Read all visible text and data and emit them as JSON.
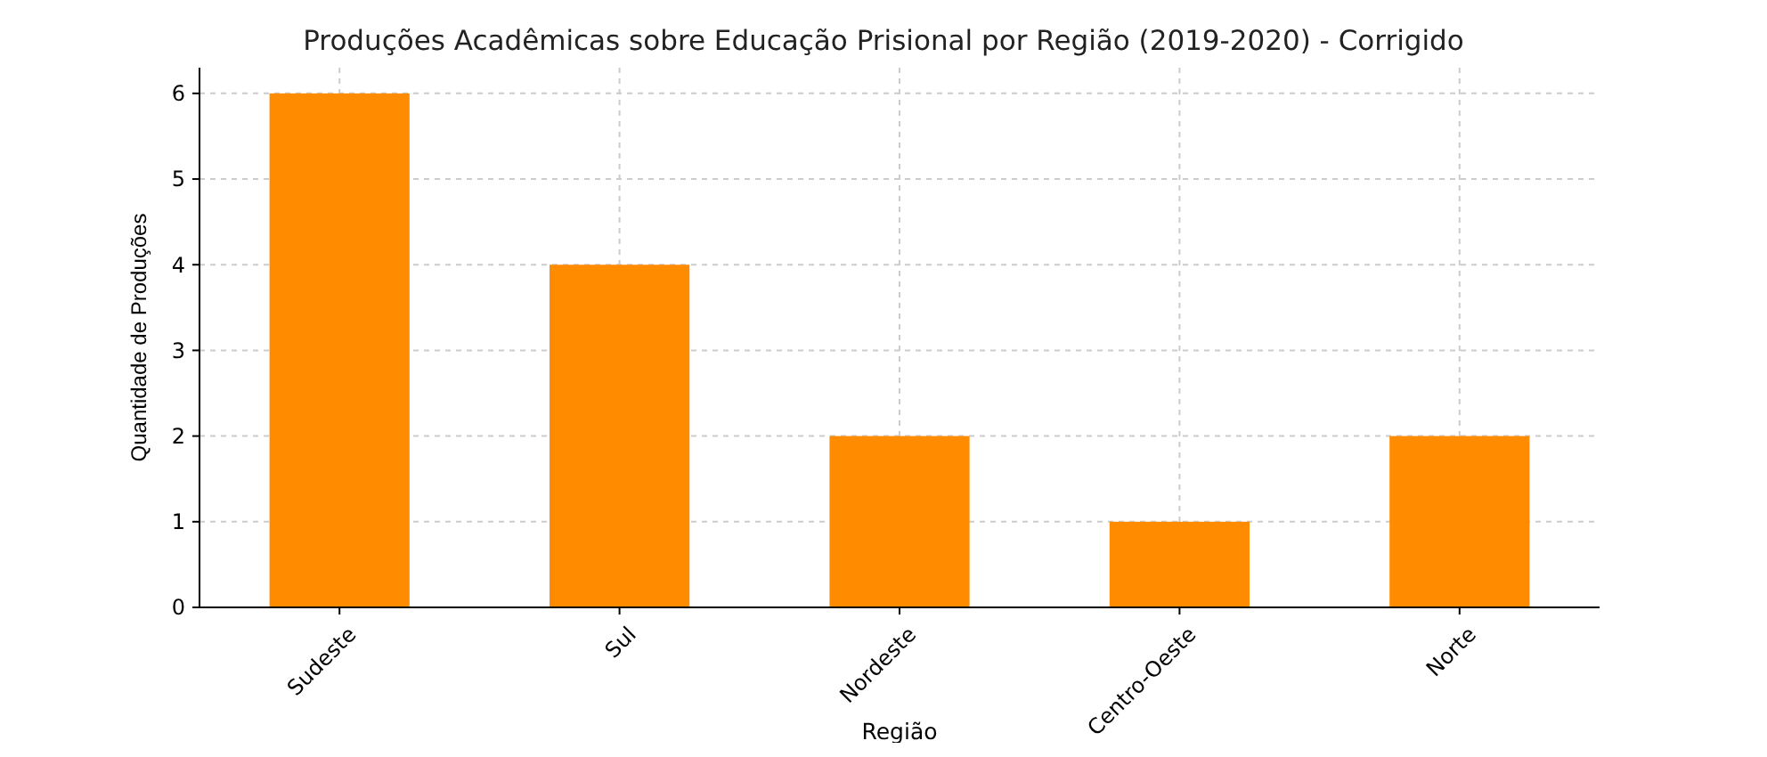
{
  "chart_data": {
    "type": "bar",
    "title": "Produções Acadêmicas sobre Educação Prisional por Região (2019-2020) - Corrigido",
    "xlabel": "Região",
    "ylabel": "Quantidade de Produções",
    "categories": [
      "Sudeste",
      "Sul",
      "Nordeste",
      "Centro-Oeste",
      "Norte"
    ],
    "values": [
      6,
      4,
      2,
      1,
      2
    ],
    "color": "#ff8c00",
    "ylim": [
      0,
      6.3
    ],
    "yticks": [
      0,
      1,
      2,
      3,
      4,
      5,
      6
    ],
    "grid": true
  }
}
